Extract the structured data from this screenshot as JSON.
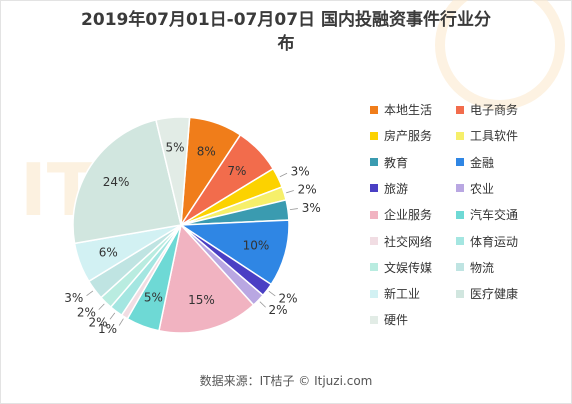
{
  "title_line1": "2019年07月01日-07月07日 国内投融资事件行业分",
  "title_line2": "布",
  "source": "数据来源：IT桔子 © Itjuzi.com",
  "watermark_text": "IT桔子",
  "chart_data": {
    "type": "pie",
    "slices": [
      {
        "name": "本地生活",
        "value": 8,
        "label": "8%",
        "color": "#f07d1a"
      },
      {
        "name": "电子商务",
        "value": 7,
        "label": "7%",
        "color": "#f26c4c"
      },
      {
        "name": "房产服务",
        "value": 3,
        "label": "3%",
        "color": "#fcd200"
      },
      {
        "name": "工具软件",
        "value": 2,
        "label": "2%",
        "color": "#f6ef6a"
      },
      {
        "name": "教育",
        "value": 3,
        "label": "3%",
        "color": "#3a9bb0"
      },
      {
        "name": "金融",
        "value": 10,
        "label": "10%",
        "color": "#2f86e4"
      },
      {
        "name": "旅游",
        "value": 2,
        "label": "2%",
        "color": "#4a3fc4"
      },
      {
        "name": "农业",
        "value": 2,
        "label": "2%",
        "color": "#b9a7e2"
      },
      {
        "name": "企业服务",
        "value": 15,
        "label": "15%",
        "color": "#f1b3c1"
      },
      {
        "name": "汽车交通",
        "value": 5,
        "label": "5%",
        "color": "#6ed9d5"
      },
      {
        "name": "社交网络",
        "value": 1,
        "label": "1%",
        "color": "#f1dde3"
      },
      {
        "name": "体育运动",
        "value": 2,
        "label": "2%",
        "color": "#a4e6e1"
      },
      {
        "name": "文娱传媒",
        "value": 2,
        "label": "2%",
        "color": "#b9ece0"
      },
      {
        "name": "物流",
        "value": 3,
        "label": "3%",
        "color": "#bfe4e2"
      },
      {
        "name": "新工业",
        "value": 6,
        "label": "6%",
        "color": "#d2f1f3"
      },
      {
        "name": "医疗健康",
        "value": 24,
        "label": "24%",
        "color": "#d1e6df"
      },
      {
        "name": "硬件",
        "value": 5,
        "label": "5%",
        "color": "#e2ece6"
      }
    ]
  }
}
